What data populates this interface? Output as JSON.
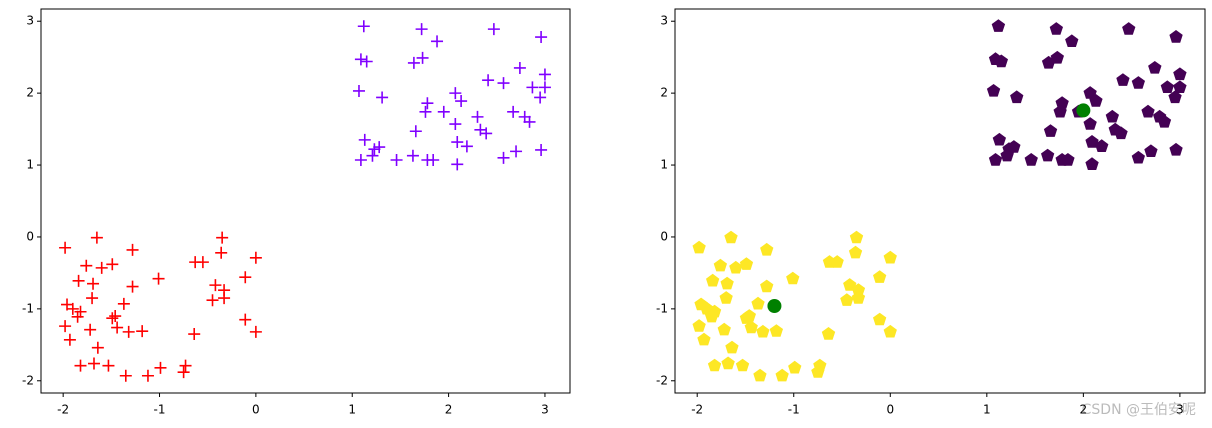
{
  "chart_data": [
    {
      "type": "scatter",
      "xlim": [
        -2.23,
        3.26
      ],
      "ylim": [
        -2.17,
        3.17
      ],
      "xticks": [
        -2,
        -1,
        0,
        1,
        2,
        3
      ],
      "yticks": [
        -2,
        -1,
        0,
        1,
        2,
        3
      ],
      "series": [
        {
          "color": "#8000ff",
          "marker": "plus",
          "x": [
            1.12,
            1.72,
            2.47,
            2.96,
            1.88,
            1.09,
            1.15,
            1.64,
            1.73,
            2.74,
            3.0,
            2.41,
            2.57,
            2.87,
            3.0,
            1.07,
            1.31,
            2.07,
            2.13,
            1.78,
            2.95,
            1.95,
            1.76,
            2.67,
            2.3,
            2.79,
            2.84,
            2.07,
            2.33,
            2.39,
            1.66,
            1.13,
            1.23,
            1.28,
            2.09,
            2.19,
            2.7,
            2.96,
            1.21,
            1.63,
            1.09,
            1.46,
            1.78,
            1.84,
            2.09,
            2.57
          ],
          "y": [
            2.93,
            2.89,
            2.89,
            2.78,
            2.72,
            2.47,
            2.44,
            2.42,
            2.49,
            2.35,
            2.26,
            2.18,
            2.14,
            2.08,
            2.08,
            2.03,
            1.94,
            2.0,
            1.89,
            1.86,
            1.94,
            1.74,
            1.74,
            1.74,
            1.67,
            1.67,
            1.6,
            1.57,
            1.49,
            1.44,
            1.47,
            1.35,
            1.22,
            1.25,
            1.32,
            1.26,
            1.19,
            1.21,
            1.13,
            1.13,
            1.07,
            1.07,
            1.07,
            1.07,
            1.01,
            1.1
          ]
        },
        {
          "color": "#ff0000",
          "marker": "plus",
          "x": [
            -1.98,
            -1.65,
            -1.28,
            -0.35,
            0.0,
            -0.36,
            -1.76,
            -1.6,
            -1.49,
            -0.63,
            -0.55,
            -1.84,
            -1.69,
            -1.01,
            -0.11,
            -0.42,
            -1.28,
            -0.33,
            -1.7,
            -0.33,
            -0.45,
            -1.96,
            -1.37,
            -1.9,
            -1.82,
            -1.85,
            -1.49,
            -1.46,
            -0.11,
            -1.98,
            -1.44,
            -1.72,
            -1.32,
            -1.18,
            -0.64,
            0.0,
            -1.93,
            -1.64,
            -1.82,
            -1.68,
            -1.53,
            -0.99,
            -0.73,
            -0.75,
            -1.35,
            -1.12
          ],
          "y": [
            -0.15,
            -0.01,
            -0.18,
            -0.01,
            -0.29,
            -0.22,
            -0.4,
            -0.43,
            -0.38,
            -0.35,
            -0.35,
            -0.61,
            -0.65,
            -0.58,
            -0.56,
            -0.67,
            -0.69,
            -0.74,
            -0.85,
            -0.85,
            -0.88,
            -0.94,
            -0.93,
            -1.0,
            -1.04,
            -1.11,
            -1.13,
            -1.1,
            -1.15,
            -1.24,
            -1.26,
            -1.29,
            -1.32,
            -1.31,
            -1.35,
            -1.32,
            -1.43,
            -1.54,
            -1.79,
            -1.76,
            -1.79,
            -1.82,
            -1.79,
            -1.88,
            -1.93,
            -1.93
          ]
        }
      ]
    },
    {
      "type": "scatter",
      "xlim": [
        -2.23,
        3.26
      ],
      "ylim": [
        -2.17,
        3.17
      ],
      "xticks": [
        -2,
        -1,
        0,
        1,
        2,
        3
      ],
      "yticks": [
        -2,
        -1,
        0,
        1,
        2,
        3
      ],
      "series": [
        {
          "color": "#440154",
          "marker": "pentagon",
          "x": [
            1.12,
            1.72,
            2.47,
            2.96,
            1.88,
            1.09,
            1.15,
            1.64,
            1.73,
            2.74,
            3.0,
            2.41,
            2.57,
            2.87,
            3.0,
            1.07,
            1.31,
            2.07,
            2.13,
            1.78,
            2.95,
            1.95,
            1.76,
            2.67,
            2.3,
            2.79,
            2.84,
            2.07,
            2.33,
            2.39,
            1.66,
            1.13,
            1.23,
            1.28,
            2.09,
            2.19,
            2.7,
            2.96,
            1.21,
            1.63,
            1.09,
            1.46,
            1.78,
            1.84,
            2.09,
            2.57
          ],
          "y": [
            2.93,
            2.89,
            2.89,
            2.78,
            2.72,
            2.47,
            2.44,
            2.42,
            2.49,
            2.35,
            2.26,
            2.18,
            2.14,
            2.08,
            2.08,
            2.03,
            1.94,
            2.0,
            1.89,
            1.86,
            1.94,
            1.74,
            1.74,
            1.74,
            1.67,
            1.67,
            1.6,
            1.57,
            1.49,
            1.44,
            1.47,
            1.35,
            1.22,
            1.25,
            1.32,
            1.26,
            1.19,
            1.21,
            1.13,
            1.13,
            1.07,
            1.07,
            1.07,
            1.07,
            1.01,
            1.1
          ]
        },
        {
          "color": "#fde725",
          "marker": "pentagon",
          "x": [
            -1.98,
            -1.65,
            -1.28,
            -0.35,
            0.0,
            -0.36,
            -1.76,
            -1.6,
            -1.49,
            -0.63,
            -0.55,
            -1.84,
            -1.69,
            -1.01,
            -0.11,
            -0.42,
            -1.28,
            -0.33,
            -1.7,
            -0.33,
            -0.45,
            -1.96,
            -1.37,
            -1.9,
            -1.82,
            -1.85,
            -1.49,
            -1.46,
            -0.11,
            -1.98,
            -1.44,
            -1.72,
            -1.32,
            -1.18,
            -0.64,
            0.0,
            -1.93,
            -1.64,
            -1.82,
            -1.68,
            -1.53,
            -0.99,
            -0.73,
            -0.75,
            -1.35,
            -1.12
          ],
          "y": [
            -0.15,
            -0.01,
            -0.18,
            -0.01,
            -0.29,
            -0.22,
            -0.4,
            -0.43,
            -0.38,
            -0.35,
            -0.35,
            -0.61,
            -0.65,
            -0.58,
            -0.56,
            -0.67,
            -0.69,
            -0.74,
            -0.85,
            -0.85,
            -0.88,
            -0.94,
            -0.93,
            -1.0,
            -1.04,
            -1.11,
            -1.13,
            -1.1,
            -1.15,
            -1.24,
            -1.26,
            -1.29,
            -1.32,
            -1.31,
            -1.35,
            -1.32,
            -1.43,
            -1.54,
            -1.79,
            -1.76,
            -1.79,
            -1.82,
            -1.79,
            -1.88,
            -1.93,
            -1.93
          ]
        },
        {
          "color": "#008000",
          "marker": "circle",
          "x": [
            -1.2,
            2.0
          ],
          "y": [
            -0.96,
            1.76
          ]
        }
      ]
    }
  ],
  "watermark": "CSDN @王伯安呢"
}
